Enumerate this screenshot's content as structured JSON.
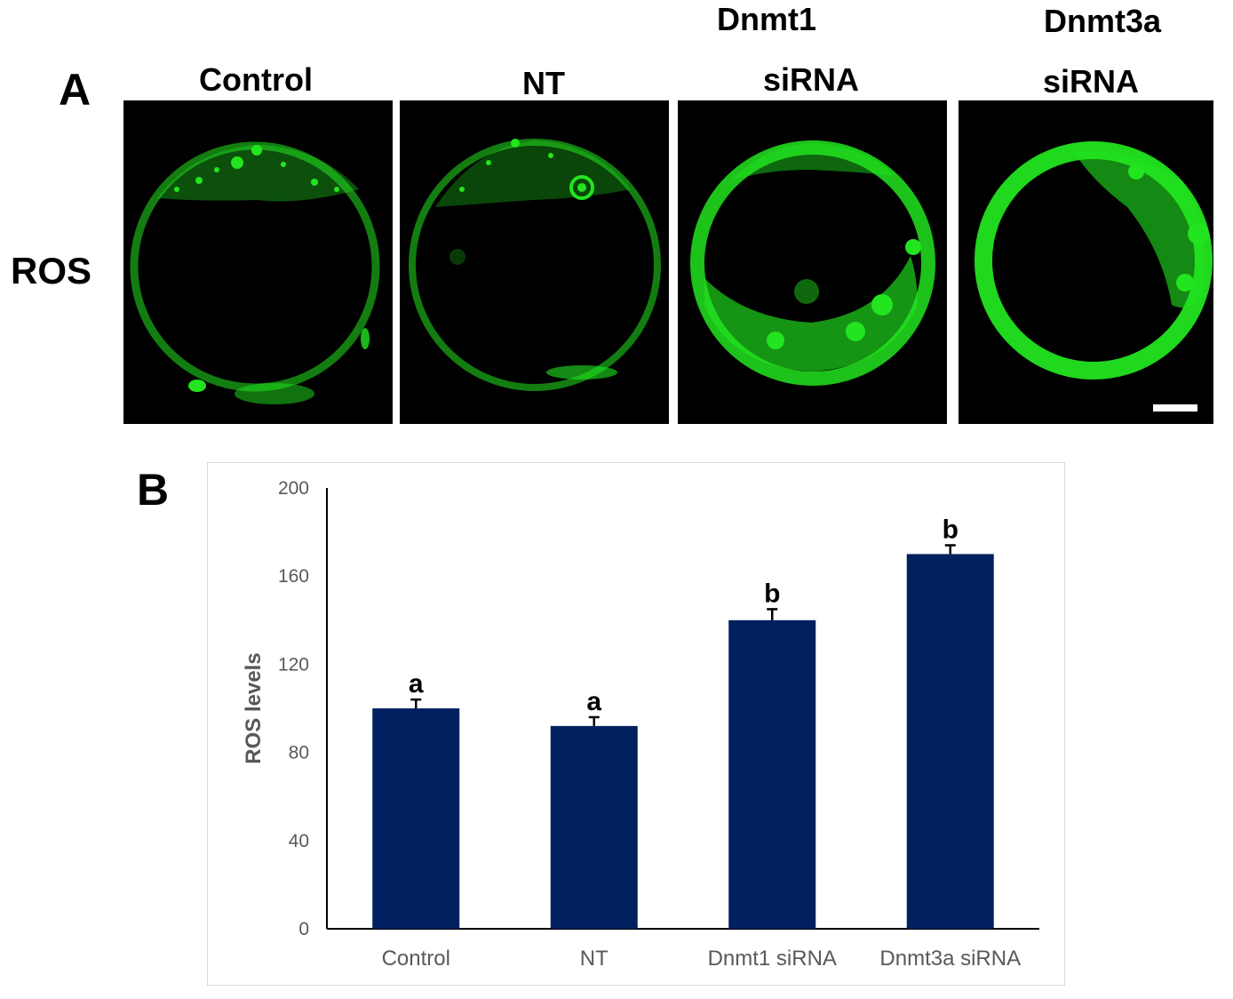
{
  "panel_a": {
    "letter": "A",
    "row_label": "ROS",
    "columns": [
      {
        "title_line1": "",
        "title_line2": "Control"
      },
      {
        "title_line1": "",
        "title_line2": "NT"
      },
      {
        "title_line1": "Dnmt1",
        "title_line2": "siRNA"
      },
      {
        "title_line1": "Dnmt3a",
        "title_line2": "siRNA"
      }
    ],
    "stain_color": "#22e41f"
  },
  "panel_b": {
    "letter": "B"
  },
  "chart_data": {
    "type": "bar",
    "categories": [
      "Control",
      "NT",
      "Dnmt1 siRNA",
      "Dnmt3a siRNA"
    ],
    "values": [
      100,
      92,
      140,
      170
    ],
    "errors": [
      4,
      4,
      5,
      4
    ],
    "significance": [
      "a",
      "a",
      "b",
      "b"
    ],
    "title": "",
    "xlabel": "",
    "ylabel": "ROS levels",
    "ylim": [
      0,
      200
    ],
    "yticks": [
      0,
      40,
      80,
      120,
      160,
      200
    ],
    "bar_color": "#002060",
    "grid": false,
    "legend": "none"
  }
}
